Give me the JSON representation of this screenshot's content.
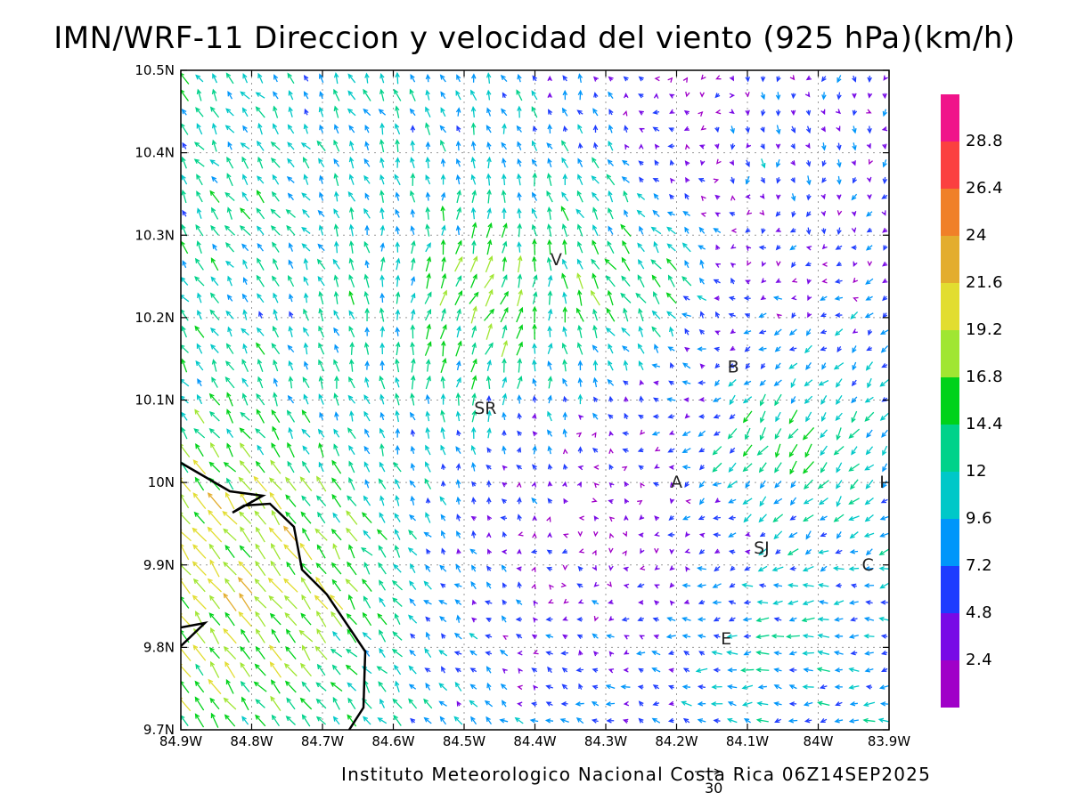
{
  "title": "IMN/WRF-11 Direccion y velocidad del viento (925 hPa)(km/h)",
  "credit": "Instituto Meteorologico Nacional Costa Rica 06Z14SEP2025",
  "reference_vector": {
    "value": 30,
    "label": "30"
  },
  "map": {
    "lon_range": [
      -84.9,
      -83.9
    ],
    "lat_range": [
      9.7,
      10.5
    ],
    "grid": true,
    "x_ticks": [
      "84.9W",
      "84.8W",
      "84.7W",
      "84.6W",
      "84.5W",
      "84.4W",
      "84.3W",
      "84.2W",
      "84.1W",
      "84W",
      "83.9W"
    ],
    "y_ticks": [
      "9.7N",
      "9.8N",
      "9.9N",
      "10N",
      "10.1N",
      "10.2N",
      "10.3N",
      "10.4N",
      "10.5N"
    ],
    "places": [
      {
        "name": "V",
        "lon": -84.37,
        "lat": 10.27
      },
      {
        "name": "SR",
        "lon": -84.47,
        "lat": 10.09
      },
      {
        "name": "B",
        "lon": -84.12,
        "lat": 10.14
      },
      {
        "name": "A",
        "lon": -84.2,
        "lat": 10.0
      },
      {
        "name": "I",
        "lon": -83.91,
        "lat": 10.0
      },
      {
        "name": "SJ",
        "lon": -84.08,
        "lat": 9.92
      },
      {
        "name": "C",
        "lon": -83.93,
        "lat": 9.9
      },
      {
        "name": "E",
        "lon": -84.13,
        "lat": 9.81
      }
    ]
  },
  "colorbar": {
    "levels": [
      "28.8",
      "26.4",
      "24",
      "21.6",
      "19.2",
      "16.8",
      "14.4",
      "12",
      "9.6",
      "7.2",
      "4.8",
      "2.4"
    ],
    "colors": [
      "#f0138a",
      "#fb4040",
      "#f08028",
      "#e3ad2e",
      "#e2dd30",
      "#a0e632",
      "#00d21a",
      "#00d28a",
      "#00c8c8",
      "#0096fa",
      "#1e3cff",
      "#780ae6",
      "#a000c8"
    ]
  },
  "wind_regions": [
    {
      "name": "nw-upper",
      "lon": -84.8,
      "lat": 10.35,
      "dir": "to-nw",
      "speed": 12
    },
    {
      "name": "v-convergence-west",
      "lon": -84.45,
      "lat": 10.22,
      "dir": "to-ne",
      "speed": 20
    },
    {
      "name": "v-convergence-east",
      "lon": -84.3,
      "lat": 10.25,
      "dir": "to-nw",
      "speed": 19
    },
    {
      "name": "ne-upper",
      "lon": -84.05,
      "lat": 10.4,
      "dir": "to-s",
      "speed": 8
    },
    {
      "name": "pacific-coast",
      "lon": -84.8,
      "lat": 9.9,
      "dir": "to-nw",
      "speed": 21
    },
    {
      "name": "central-valley",
      "lon": -84.3,
      "lat": 9.95,
      "dir": "variable",
      "speed": 6
    },
    {
      "name": "east-b",
      "lon": -84.05,
      "lat": 10.05,
      "dir": "to-sw",
      "speed": 17
    },
    {
      "name": "south-east",
      "lon": -84.05,
      "lat": 9.8,
      "dir": "to-w",
      "speed": 11
    }
  ]
}
